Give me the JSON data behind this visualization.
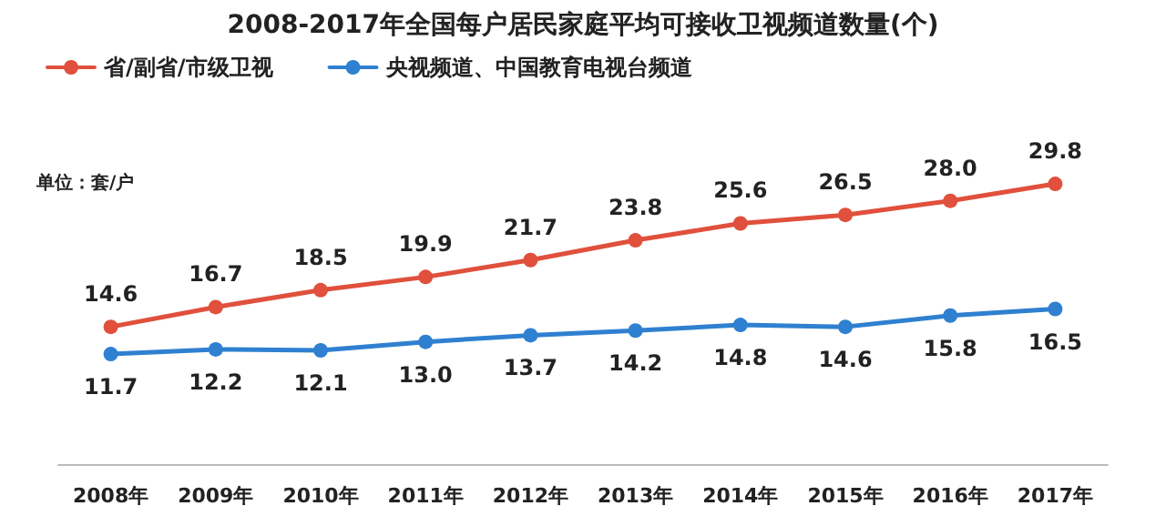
{
  "chart_data": {
    "type": "line",
    "title": "2008-2017年全国每户居民家庭平均可接收卫视频道数量(个)",
    "categories": [
      "2008年",
      "2009年",
      "2010年",
      "2011年",
      "2012年",
      "2013年",
      "2014年",
      "2015年",
      "2016年",
      "2017年"
    ],
    "series": [
      {
        "name": "省/副省/市级卫视",
        "color": "#e0503c",
        "values": [
          14.6,
          16.7,
          18.5,
          19.9,
          21.7,
          23.8,
          25.6,
          26.5,
          28.0,
          29.8
        ],
        "value_labels": [
          "14.6",
          "16.7",
          "18.5",
          "19.9",
          "21.7",
          "23.8",
          "25.6",
          "26.5",
          "28.0",
          "29.8"
        ]
      },
      {
        "name": "央视频道、中国教育电视台频道",
        "color": "#2f80d0",
        "values": [
          11.7,
          12.2,
          12.1,
          13.0,
          13.7,
          14.2,
          14.8,
          14.6,
          15.8,
          16.5
        ],
        "value_labels": [
          "11.7",
          "12.2",
          "12.1",
          "13.0",
          "13.7",
          "14.2",
          "14.8",
          "14.6",
          "15.8",
          "16.5"
        ]
      }
    ],
    "annotations": [
      "单位：套/户"
    ],
    "marker": "circle",
    "line_style": "solid",
    "legend": "top left",
    "grid": false
  }
}
